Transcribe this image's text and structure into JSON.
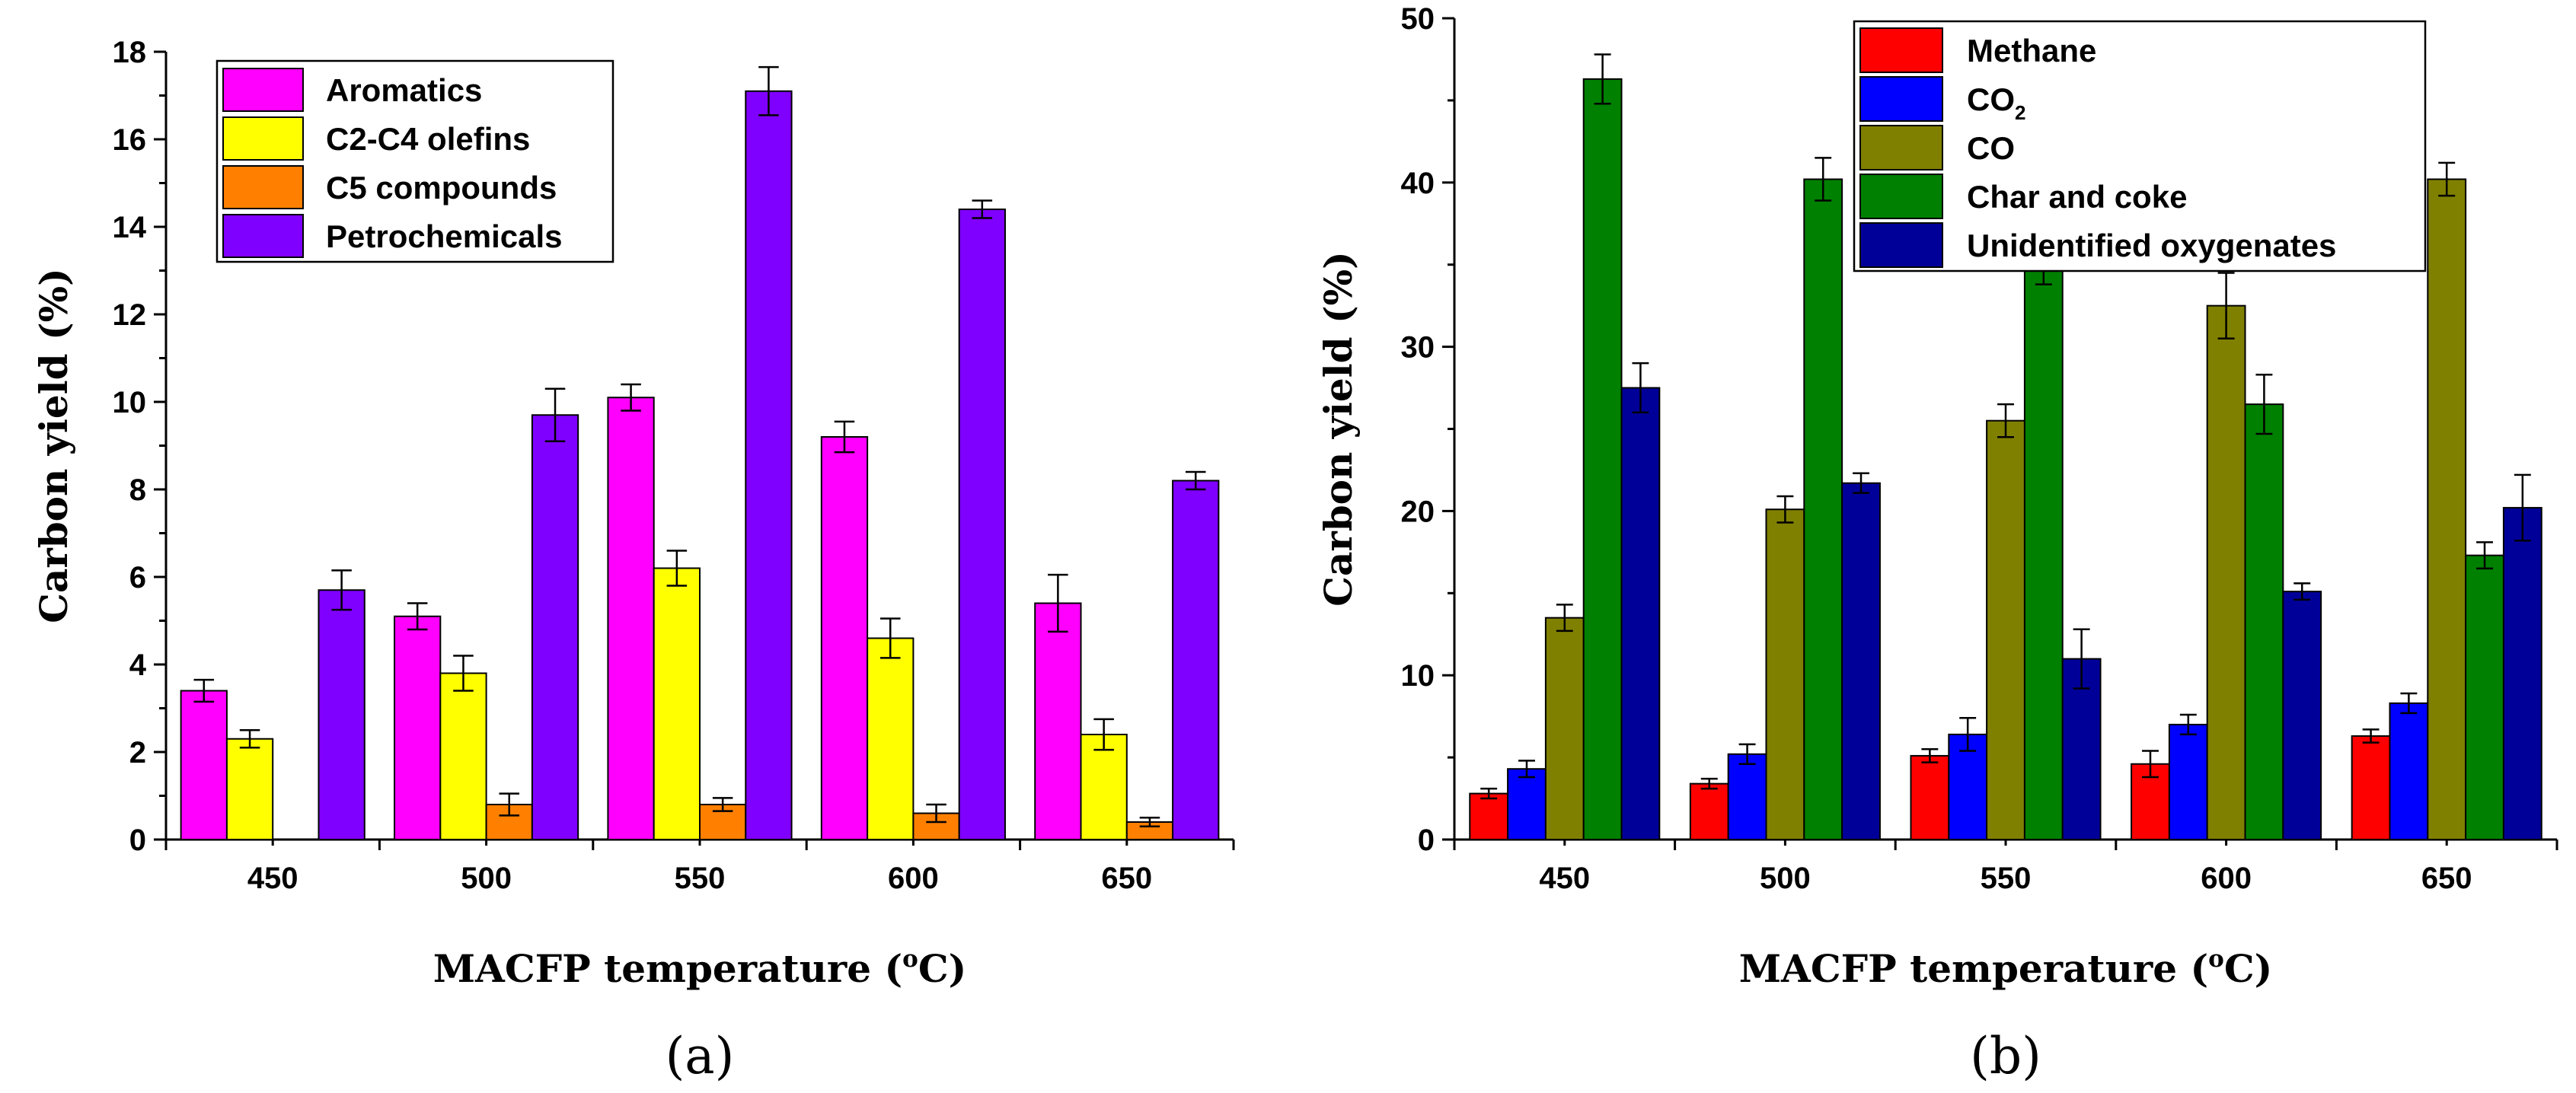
{
  "chart_data": [
    {
      "type": "bar",
      "panel_label": "(a)",
      "xlabel": "MACFP temperature (oC)",
      "xlabel_parts": {
        "before": "MACFP temperature (",
        "sup": "o",
        "after": "C)"
      },
      "ylabel": "Carbon yield (%)",
      "categories": [
        "450",
        "500",
        "550",
        "600",
        "650"
      ],
      "ylim": [
        0,
        18
      ],
      "yticks": [
        0,
        2,
        4,
        6,
        8,
        10,
        12,
        14,
        16,
        18
      ],
      "legend_position": "top-left",
      "series": [
        {
          "name": "Aromatics",
          "color": "#ff00ff",
          "values": [
            3.4,
            5.1,
            10.1,
            9.2,
            5.4
          ],
          "errors": [
            0.25,
            0.3,
            0.3,
            0.35,
            0.65
          ]
        },
        {
          "name": "C2-C4 olefins",
          "color": "#ffff00",
          "values": [
            2.3,
            3.8,
            6.2,
            4.6,
            2.4
          ],
          "errors": [
            0.2,
            0.4,
            0.4,
            0.45,
            0.35
          ]
        },
        {
          "name": "C5 compounds",
          "color": "#ff8000",
          "values": [
            0,
            0.8,
            0.8,
            0.6,
            0.4
          ],
          "errors": [
            0,
            0.25,
            0.15,
            0.2,
            0.1
          ]
        },
        {
          "name": "Petrochemicals",
          "color": "#8000ff",
          "values": [
            5.7,
            9.7,
            17.1,
            14.4,
            8.2
          ],
          "errors": [
            0.45,
            0.6,
            0.55,
            0.2,
            0.2
          ]
        }
      ]
    },
    {
      "type": "bar",
      "panel_label": "(b)",
      "xlabel": "MACFP temperature (oC)",
      "xlabel_parts": {
        "before": "MACFP temperature (",
        "sup": "o",
        "after": "C)"
      },
      "ylabel": "Carbon yield (%)",
      "categories": [
        "450",
        "500",
        "550",
        "600",
        "650"
      ],
      "ylim": [
        0,
        50
      ],
      "yticks": [
        0,
        10,
        20,
        30,
        40,
        50
      ],
      "legend_position": "top-right",
      "series": [
        {
          "name": "Methane",
          "color": "#ff0000",
          "values": [
            2.8,
            3.4,
            5.1,
            4.6,
            6.3
          ],
          "errors": [
            0.3,
            0.3,
            0.4,
            0.8,
            0.4
          ]
        },
        {
          "name": "CO2",
          "legend_parts": {
            "before": "CO",
            "sub": "2"
          },
          "color": "#0000ff",
          "values": [
            4.3,
            5.2,
            6.4,
            7.0,
            8.3
          ],
          "errors": [
            0.5,
            0.6,
            1.0,
            0.6,
            0.6
          ]
        },
        {
          "name": "CO",
          "color": "#808000",
          "values": [
            13.5,
            20.1,
            25.5,
            32.5,
            40.2
          ],
          "errors": [
            0.8,
            0.8,
            1.0,
            2.0,
            1.0
          ]
        },
        {
          "name": "Char and coke",
          "color": "#008000",
          "values": [
            46.3,
            40.2,
            35.2,
            26.5,
            17.3
          ],
          "errors": [
            1.5,
            1.3,
            1.4,
            1.8,
            0.8
          ]
        },
        {
          "name": "Unidentified oxygenates",
          "color": "#000099",
          "values": [
            27.5,
            21.7,
            11.0,
            15.1,
            20.2
          ],
          "errors": [
            1.5,
            0.6,
            1.8,
            0.5,
            2.0
          ]
        }
      ]
    }
  ]
}
